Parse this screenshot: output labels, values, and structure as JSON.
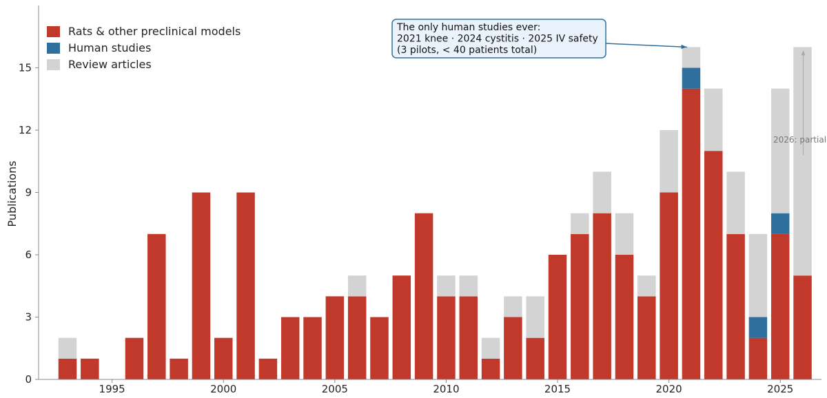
{
  "chart_data": {
    "type": "bar",
    "stacked": true,
    "title": "",
    "xlabel": "",
    "ylabel": "Publications",
    "ylim": [
      0,
      18
    ],
    "yticks": [
      0,
      3,
      6,
      9,
      12,
      15
    ],
    "xticks": [
      1995,
      2000,
      2005,
      2010,
      2015,
      2020,
      2025
    ],
    "x": [
      1993,
      1994,
      1995,
      1996,
      1997,
      1998,
      1999,
      2000,
      2001,
      2002,
      2003,
      2004,
      2005,
      2006,
      2007,
      2008,
      2009,
      2010,
      2011,
      2012,
      2013,
      2014,
      2015,
      2016,
      2017,
      2018,
      2019,
      2020,
      2021,
      2022,
      2023,
      2024,
      2025,
      2026
    ],
    "series": [
      {
        "name": "Rats & other preclinical models",
        "color": "#c0392b",
        "values": [
          1,
          1,
          0,
          2,
          7,
          1,
          9,
          2,
          9,
          1,
          3,
          3,
          4,
          4,
          3,
          5,
          8,
          4,
          4,
          1,
          3,
          2,
          6,
          7,
          8,
          6,
          4,
          9,
          14,
          11,
          7,
          2,
          7,
          5
        ]
      },
      {
        "name": "Human studies",
        "color": "#2e6f9e",
        "values": [
          0,
          0,
          0,
          0,
          0,
          0,
          0,
          0,
          0,
          0,
          0,
          0,
          0,
          0,
          0,
          0,
          0,
          0,
          0,
          0,
          0,
          0,
          0,
          0,
          0,
          0,
          0,
          0,
          1,
          0,
          0,
          1,
          1,
          0
        ]
      },
      {
        "name": "Review articles",
        "color": "#d3d3d3",
        "values": [
          1,
          0,
          0,
          0,
          0,
          0,
          0,
          0,
          0,
          0,
          0,
          0,
          0,
          1,
          0,
          0,
          0,
          1,
          1,
          1,
          1,
          2,
          0,
          1,
          2,
          2,
          1,
          3,
          1,
          3,
          3,
          4,
          6,
          11
        ]
      }
    ],
    "grid": false,
    "legend_position": "top-left",
    "annotations": {
      "callout_lines": [
        "The only human studies ever:",
        "2021 knee  ·  2024 cystitis  ·  2025 IV safety",
        "(3 pilots, < 40 patients total)"
      ],
      "callout_target_year": 2021,
      "partial_label": "2026: partial"
    }
  }
}
